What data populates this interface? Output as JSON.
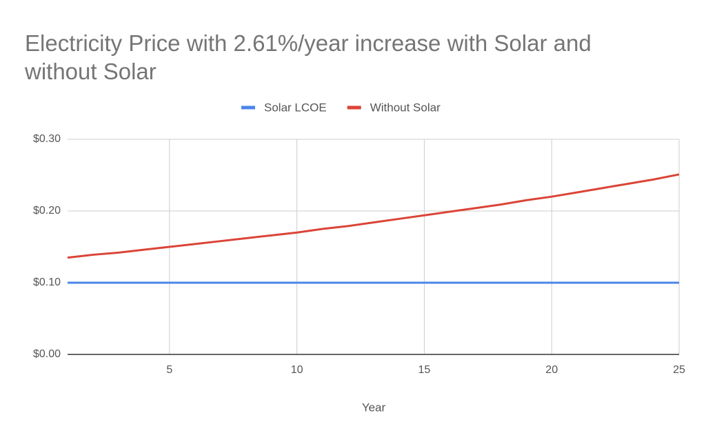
{
  "chart_data": {
    "type": "line",
    "title": "Electricity Price with 2.61%/year increase with Solar and without Solar",
    "x_label": "Year",
    "x": [
      1,
      2,
      3,
      4,
      5,
      6,
      7,
      8,
      9,
      10,
      11,
      12,
      13,
      14,
      15,
      16,
      17,
      18,
      19,
      20,
      21,
      22,
      23,
      24,
      25
    ],
    "series": [
      {
        "name": "Solar LCOE",
        "color": "#4a86e8",
        "values": [
          0.1,
          0.1,
          0.1,
          0.1,
          0.1,
          0.1,
          0.1,
          0.1,
          0.1,
          0.1,
          0.1,
          0.1,
          0.1,
          0.1,
          0.1,
          0.1,
          0.1,
          0.1,
          0.1,
          0.1,
          0.1,
          0.1,
          0.1,
          0.1,
          0.1
        ]
      },
      {
        "name": "Without Solar",
        "color": "#db4437",
        "values": [
          0.135,
          0.139,
          0.142,
          0.146,
          0.15,
          0.154,
          0.158,
          0.162,
          0.166,
          0.17,
          0.175,
          0.179,
          0.184,
          0.189,
          0.194,
          0.199,
          0.204,
          0.209,
          0.215,
          0.22,
          0.226,
          0.232,
          0.238,
          0.244,
          0.251
        ]
      }
    ],
    "xlim": [
      1,
      25
    ],
    "xticks": [
      5,
      10,
      15,
      20,
      25
    ],
    "ylim": [
      0,
      0.3
    ],
    "yticks": [
      {
        "value": 0,
        "label": "$0.00"
      },
      {
        "value": 0.1,
        "label": "$0.10"
      },
      {
        "value": 0.2,
        "label": "$0.20"
      },
      {
        "value": 0.3,
        "label": "$0.30"
      }
    ],
    "grid": true,
    "legend": "top"
  }
}
